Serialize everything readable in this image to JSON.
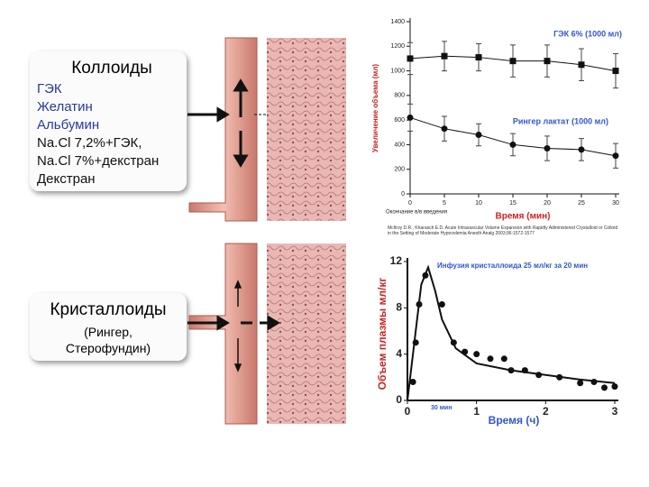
{
  "colloids": {
    "title": "Коллоиды",
    "items": [
      "ГЭК",
      "Желатин",
      "Альбумин",
      "Na.Cl 7,2%+ГЭК,",
      "Na.Cl 7%+декстран",
      "Декстран"
    ]
  },
  "crystalloids": {
    "title": "Кристаллоиды",
    "items": [
      "(Рингер,",
      "Стерофундин)"
    ]
  },
  "chart_data": [
    {
      "type": "line",
      "ylabel": "Увеличение объема (мл)",
      "xlabel": "Время (мин)",
      "annotation": "Окончание в/в введения",
      "source": "McIlroy D.R., Kharasch E.D. Acute Intravascular Volume Expansion with Rapidly Administered Crystalloid or Colloid in the Setting of Moderate Hypovolemia Anesth Analg 2003;96:1572-1577",
      "x": [
        0,
        5,
        10,
        15,
        20,
        25,
        30
      ],
      "series": [
        {
          "name": "ГЭК 6% (1000 мл)",
          "color": "#111111",
          "label_color": "#3355cc",
          "marker": "square",
          "values": [
            1100,
            1120,
            1110,
            1080,
            1080,
            1050,
            1000
          ],
          "errors": [
            130,
            120,
            110,
            130,
            130,
            130,
            140
          ]
        },
        {
          "name": "Рингер лактат (1000 мл)",
          "color": "#111111",
          "label_color": "#3355cc",
          "marker": "circle",
          "values": [
            620,
            530,
            480,
            400,
            370,
            360,
            310
          ],
          "errors": [
            110,
            100,
            90,
            90,
            100,
            90,
            100
          ]
        }
      ],
      "xlim": [
        0,
        30
      ],
      "ylim": [
        0,
        1400
      ],
      "xticks": [
        0,
        5,
        10,
        15,
        20,
        25,
        30
      ],
      "yticks": [
        0,
        200,
        400,
        600,
        800,
        1000,
        1200,
        1400
      ]
    },
    {
      "type": "scatter",
      "title": "Инфузия кристаллоида 25 мл/кг за 20 мин",
      "annotation": "30 мин",
      "ylabel": "Объем плазмы мл/кг",
      "xlabel": "Время (ч)",
      "x": [
        0.08,
        0.12,
        0.17,
        0.26,
        0.5,
        0.67,
        0.83,
        1.0,
        1.2,
        1.4,
        1.5,
        1.7,
        1.9,
        2.2,
        2.5,
        2.7,
        2.85,
        3.0
      ],
      "values": [
        1.6,
        5.0,
        8.3,
        10.8,
        8.3,
        5.0,
        4.2,
        4.0,
        3.6,
        3.6,
        2.6,
        2.6,
        2.2,
        2.0,
        1.5,
        1.6,
        1.1,
        1.2
      ],
      "color": "#111111",
      "fit": {
        "x": [
          0,
          0.1,
          0.2,
          0.3,
          0.4,
          0.5,
          0.7,
          1,
          1.5,
          2,
          2.5,
          3
        ],
        "values": [
          0,
          5,
          10,
          11.5,
          9.5,
          7,
          4.5,
          3.2,
          2.6,
          2.2,
          1.8,
          1.5
        ]
      },
      "xlim": [
        0,
        3
      ],
      "ylim": [
        0,
        12
      ],
      "xticks": [
        0,
        1,
        2,
        3
      ],
      "yticks": [
        0,
        4,
        8,
        12
      ]
    }
  ]
}
